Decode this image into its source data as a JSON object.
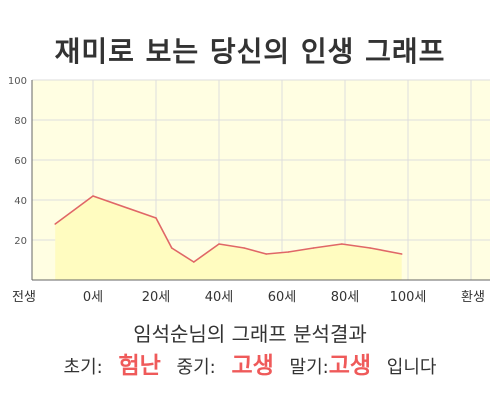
{
  "page": {
    "title": "재미로 보는 당신의 인생 그래프"
  },
  "summary": {
    "subtitle": "임석순님의 그래프 분석결과",
    "early_label": "초기:",
    "early_value": "험난",
    "middle_label": "중기:",
    "middle_value": "고생",
    "late_label": "말기:",
    "late_value": "고생",
    "ending": "입니다"
  },
  "chart_data": {
    "type": "area",
    "categories": [
      "전생",
      "0세",
      "20세",
      "40세",
      "60세",
      "80세",
      "100세",
      "환생"
    ],
    "points": [
      {
        "x": -12,
        "y": 28
      },
      {
        "x": 0,
        "y": 42
      },
      {
        "x": 20,
        "y": 31
      },
      {
        "x": 25,
        "y": 16
      },
      {
        "x": 32,
        "y": 9
      },
      {
        "x": 40,
        "y": 18
      },
      {
        "x": 48,
        "y": 16
      },
      {
        "x": 55,
        "y": 13
      },
      {
        "x": 62,
        "y": 14
      },
      {
        "x": 70,
        "y": 16
      },
      {
        "x": 79,
        "y": 18
      },
      {
        "x": 88,
        "y": 16
      },
      {
        "x": 98,
        "y": 13
      }
    ],
    "yticks": [
      20,
      40,
      60,
      80,
      100
    ],
    "ylim": [
      0,
      100
    ],
    "grid": true,
    "colors": {
      "line": "#e06767",
      "fill": "#fffcc0",
      "plot_bg": "#fffee2",
      "grid": "#dddddd",
      "axis": "#666666"
    }
  }
}
